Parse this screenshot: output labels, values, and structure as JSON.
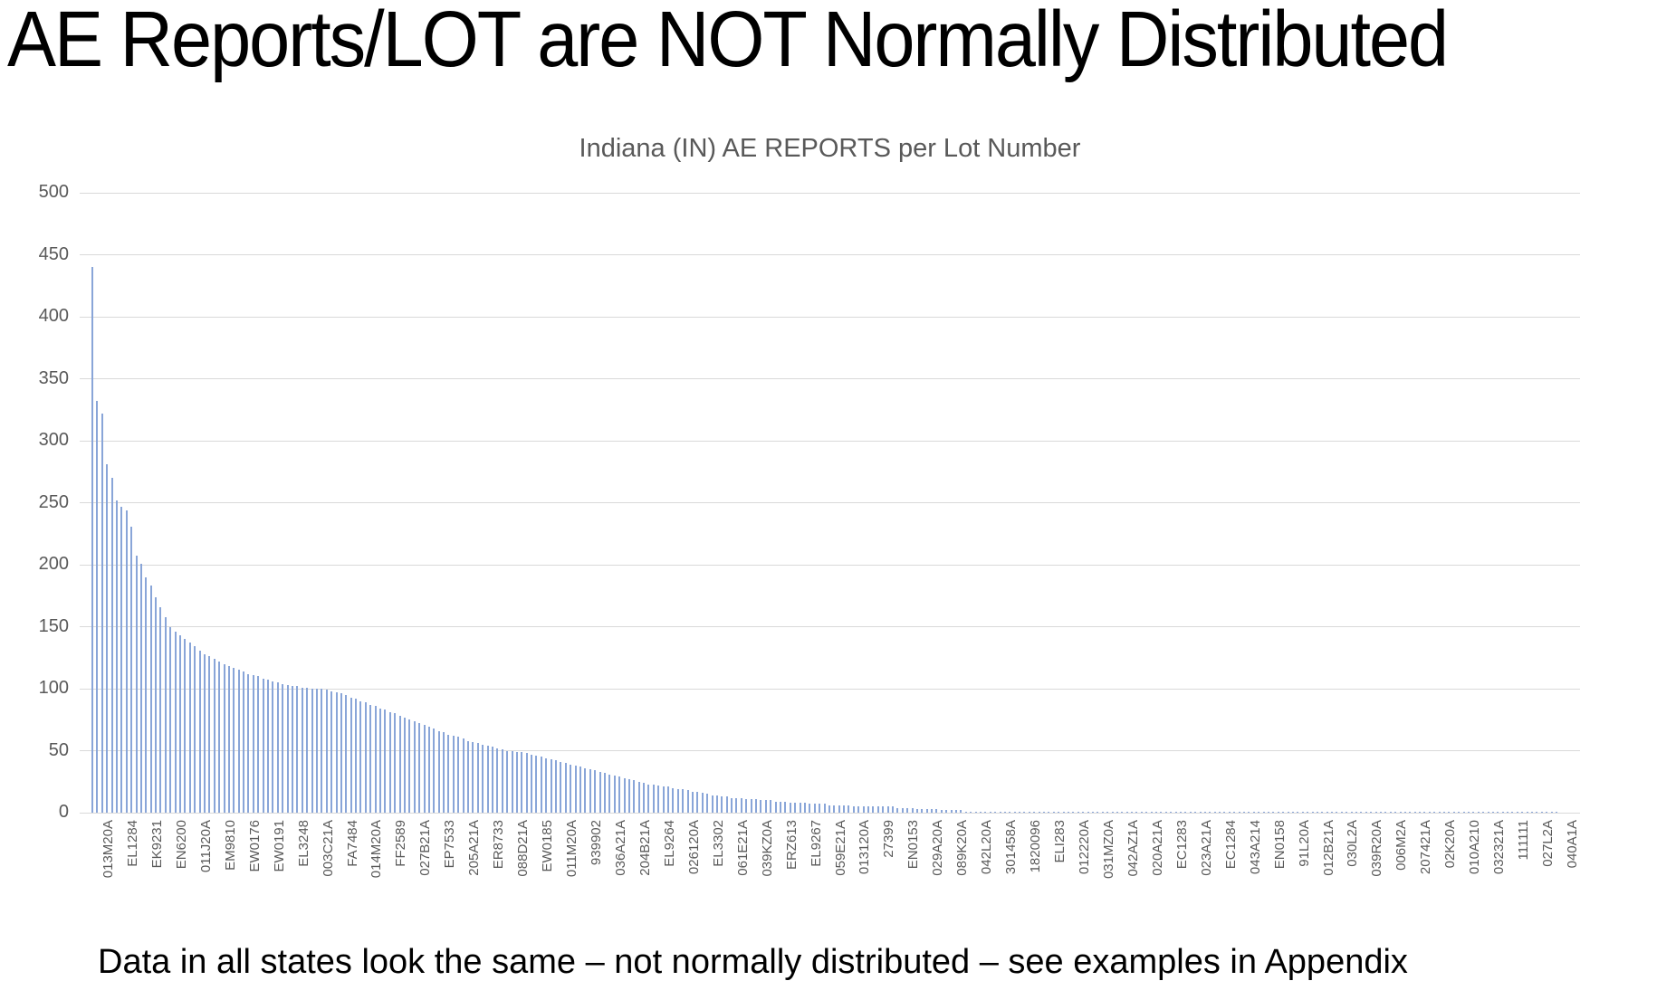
{
  "slide": {
    "title": "AE Reports/LOT are NOT Normally Distributed",
    "caption": "Data in all states look the same – not normally distributed – see examples in Appendix"
  },
  "chart_data": {
    "type": "bar",
    "title": "Indiana (IN) AE REPORTS per Lot Number",
    "xlabel": "",
    "ylabel": "",
    "ylim": [
      0,
      500
    ],
    "y_ticks": [
      0,
      50,
      100,
      150,
      200,
      250,
      300,
      350,
      400,
      450,
      500
    ],
    "grid": true,
    "legend_position": "none",
    "bar_color": "#89a5d8",
    "gridline_color": "#d9d9d9",
    "title_color": "#595959",
    "x_label_every": 5,
    "x_tick_labels": [
      "013M20A",
      "EL1284",
      "EK9231",
      "EN6200",
      "011J20A",
      "EM9810",
      "EW0176",
      "EW0191",
      "EL3248",
      "003C21A",
      "FA7484",
      "014M20A",
      "FF2589",
      "027B21A",
      "EP7533",
      "205A21A",
      "ER8733",
      "088D21A",
      "EW0185",
      "011M20A",
      "939902",
      "036A21A",
      "204B21A",
      "EL9264",
      "026120A",
      "EL3302",
      "061E21A",
      "039KZ0A",
      "ERZ613",
      "EL9267",
      "059E21A",
      "013120A",
      "27399",
      "EN0153",
      "029A20A",
      "089K20A",
      "042L20A",
      "301458A",
      "1820096",
      "ELI283",
      "012220A",
      "031MZ0A",
      "042AZ1A",
      "020A21A",
      "EC1283",
      "023A21A",
      "EC1284",
      "043A214",
      "EN0158",
      "91L20A",
      "012B21A",
      "030L2A",
      "039R20A",
      "006M2A",
      "207421A",
      "02K20A",
      "010A210",
      "032321A",
      "111111",
      "027L2A",
      "040A1A"
    ],
    "values": [
      440,
      332,
      322,
      281,
      270,
      252,
      247,
      244,
      231,
      207,
      201,
      190,
      183,
      174,
      166,
      158,
      150,
      146,
      143,
      140,
      137,
      134,
      131,
      128,
      126,
      124,
      122,
      120,
      118,
      117,
      115,
      114,
      112,
      111,
      110,
      108,
      107,
      106,
      105,
      104,
      103,
      102,
      102,
      101,
      101,
      100,
      100,
      100,
      99,
      98,
      97,
      96,
      95,
      93,
      92,
      90,
      89,
      87,
      86,
      84,
      83,
      81,
      80,
      78,
      77,
      75,
      74,
      72,
      71,
      69,
      68,
      66,
      65,
      63,
      62,
      61,
      60,
      58,
      57,
      56,
      55,
      54,
      53,
      52,
      51,
      50,
      50,
      49,
      49,
      48,
      47,
      46,
      45,
      44,
      43,
      42,
      41,
      40,
      39,
      38,
      37,
      36,
      35,
      34,
      33,
      32,
      31,
      30,
      29,
      28,
      27,
      26,
      25,
      24,
      23,
      23,
      22,
      21,
      21,
      20,
      19,
      19,
      18,
      17,
      17,
      16,
      15,
      14,
      14,
      13,
      13,
      12,
      12,
      12,
      11,
      11,
      11,
      10,
      10,
      10,
      9,
      9,
      9,
      8,
      8,
      8,
      8,
      7,
      7,
      7,
      7,
      6,
      6,
      6,
      6,
      6,
      5,
      5,
      5,
      5,
      5,
      5,
      5,
      5,
      5,
      4,
      4,
      4,
      4,
      3,
      3,
      3,
      3,
      3,
      2,
      2,
      2,
      2,
      2,
      1,
      1,
      1,
      1,
      1,
      1,
      1,
      1,
      1,
      1,
      1,
      1,
      1,
      1,
      1,
      1,
      1,
      1,
      1,
      1,
      1,
      1,
      1,
      1,
      1,
      1,
      1,
      1,
      1,
      1,
      1,
      1,
      1,
      1,
      1,
      1,
      1,
      1,
      1,
      1,
      1,
      1,
      1,
      1,
      1,
      1,
      1,
      1,
      1,
      1,
      1,
      1,
      1,
      1,
      1,
      1,
      1,
      1,
      1,
      1,
      1,
      1,
      1,
      1,
      1,
      1,
      1,
      1,
      1,
      1,
      1,
      1,
      1,
      1,
      1,
      1,
      1,
      1,
      1,
      1,
      1,
      1,
      1,
      1,
      1,
      1,
      1,
      1,
      1,
      1,
      1,
      1,
      1,
      1,
      1,
      1,
      1,
      1,
      1,
      1,
      1,
      1,
      1,
      1,
      1,
      1,
      1,
      1,
      1,
      1,
      1,
      1,
      1,
      1,
      1,
      1,
      1,
      1,
      1,
      1,
      1,
      1
    ]
  }
}
